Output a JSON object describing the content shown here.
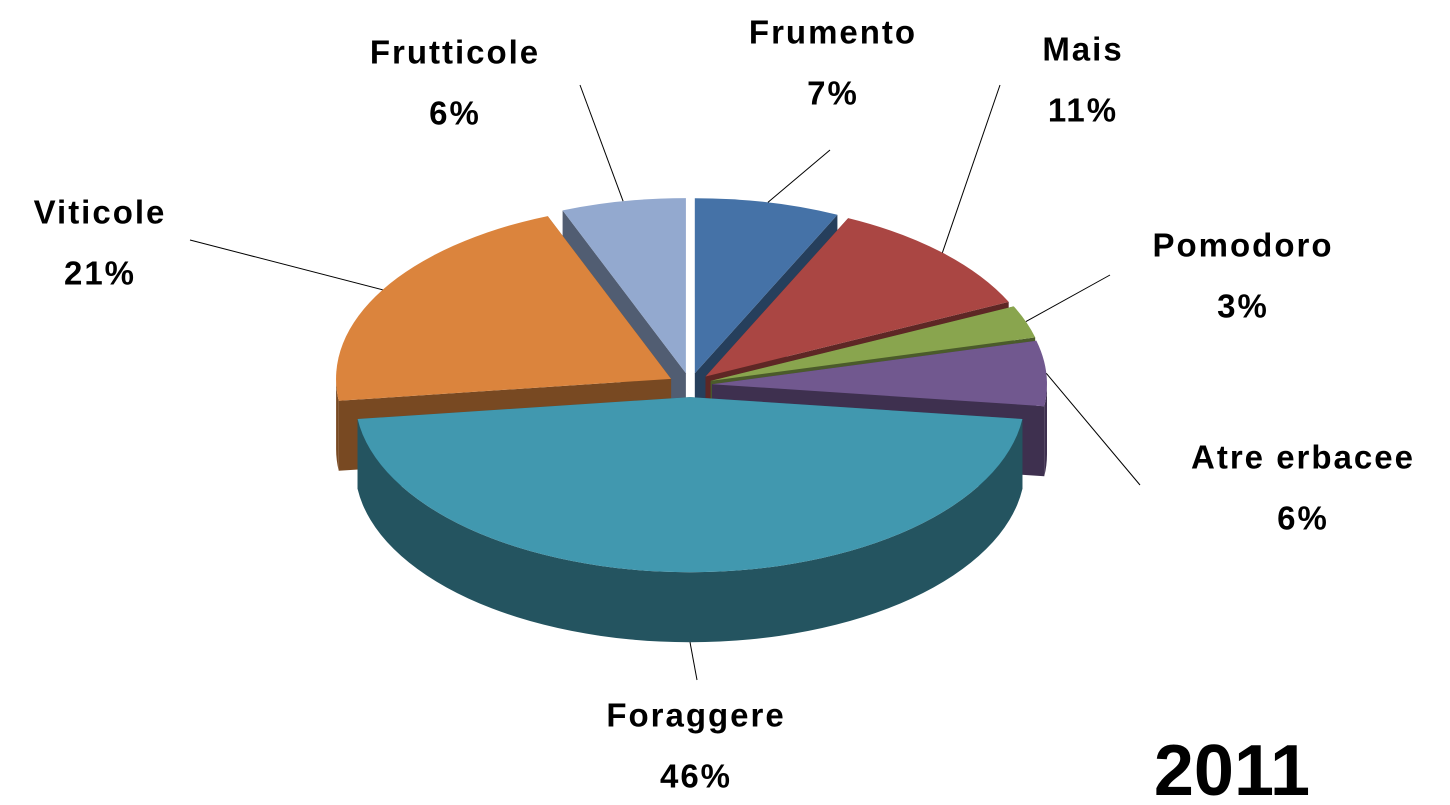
{
  "chart_data": {
    "type": "pie",
    "annotation": "2011",
    "categories": [
      "Frumento",
      "Mais",
      "Pomodoro",
      "Atre erbacee",
      "Foraggere",
      "Viticole",
      "Frutticole"
    ],
    "values": [
      7,
      11,
      3,
      6,
      46,
      21,
      6
    ],
    "value_labels": [
      "7%",
      "11%",
      "3%",
      "6%",
      "46%",
      "21%",
      "6%"
    ],
    "colors": [
      "#4572a7",
      "#aa4643",
      "#89a54e",
      "#71588f",
      "#4198af",
      "#db843d",
      "#93a9cf"
    ]
  }
}
